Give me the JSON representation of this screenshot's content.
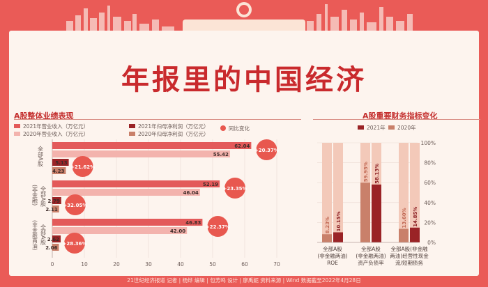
{
  "page": {
    "title": "年报里的中国经济",
    "footer": "21世纪经济报道  记者 | 杨烨  编辑 | 包芳鸣  设计 | 廖禹妮  资料来源 | Wind  数据截至2022年4月28日"
  },
  "colors": {
    "background": "#ea5b57",
    "card": "#fdf4ee",
    "title": "#c92a2d",
    "rev2021": "#e35a5a",
    "rev2020": "#f3b3ad",
    "np2021": "#9a2326",
    "np2020": "#c9806a",
    "yoy_circle": "#e8584f"
  },
  "left_section": {
    "title": "A股整体业绩表现",
    "legend": {
      "rev2021": "2021年营业收入（万亿元）",
      "rev2020": "2020年营业收入（万亿元）",
      "np2021": "2021年归母净利润（万亿元）",
      "np2020": "2020年归母净利润（万亿元）",
      "yoy": "同比变化"
    }
  },
  "right_section": {
    "title": "A股重要财务指标变化",
    "legend": {
      "y2021": "2021年",
      "y2020": "2020年"
    }
  },
  "chart_data": [
    {
      "type": "bar",
      "orientation": "horizontal",
      "groups": [
        {
          "label": "全部A股",
          "rev2021": 62.04,
          "rev2020": 55.42,
          "rev_yoy": "+20.37%",
          "np2021": 5.13,
          "np2020": 4.23,
          "np_yoy": "+21.62%"
        },
        {
          "label": "（非金融）全部A股",
          "rev2021": 52.19,
          "rev2020": 46.04,
          "rev_yoy": "+23.35%",
          "np2021": 2.79,
          "np2020": 2.11,
          "np_yoy": "+32.05%"
        },
        {
          "label": "（非金融两油）全部A股",
          "rev2021": 46.83,
          "rev2020": 42.0,
          "rev_yoy": "+22.37%",
          "np2021": 2.62,
          "np2020": 2.06,
          "np_yoy": "+28.36%"
        }
      ],
      "xticks": [
        "0",
        "10",
        "20",
        "30",
        "40",
        "50",
        "60",
        "70"
      ],
      "xlim": [
        0,
        70
      ]
    },
    {
      "type": "bar",
      "orientation": "vertical",
      "categories": [
        [
          "全部A股",
          "(非金融两油)",
          "ROE"
        ],
        [
          "全部A股",
          "(非金融两油)",
          "资产负债率"
        ],
        [
          "全部A股(非金融",
          "两油)经营性现金",
          "流/短期债务"
        ]
      ],
      "series": [
        {
          "name": "2020年",
          "values": [
            8.23,
            59.95,
            13.6
          ],
          "labels": [
            "8.23%",
            "59.95%",
            "13.60%"
          ]
        },
        {
          "name": "2021年",
          "values": [
            10.15,
            58.13,
            14.85
          ],
          "labels": [
            "10.15%",
            "58.13%",
            "14.85%"
          ]
        }
      ],
      "yticks": [
        "0%",
        "20%",
        "40%",
        "60%",
        "80%",
        "100%"
      ],
      "ylim": [
        0,
        100
      ]
    }
  ]
}
